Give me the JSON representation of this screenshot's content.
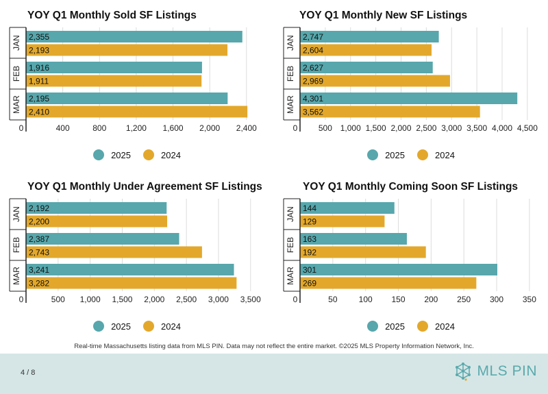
{
  "colors": {
    "s2025": "#57a7ac",
    "s2024": "#e3a82b"
  },
  "charts": [
    {
      "title": "YOY Q1 Monthly Sold SF Listings",
      "chart_data": {
        "type": "bar",
        "orientation": "horizontal",
        "categories": [
          "JAN",
          "FEB",
          "MAR"
        ],
        "series": [
          {
            "name": "2025",
            "values": [
              2355,
              1916,
              2195
            ],
            "labels": [
              "2,355",
              "1,916",
              "2,195"
            ]
          },
          {
            "name": "2024",
            "values": [
              2193,
              1911,
              2410
            ],
            "labels": [
              "2,193",
              "1,911",
              "2,410"
            ]
          }
        ],
        "xlim": [
          0,
          2640
        ],
        "ticks": [
          0,
          400,
          800,
          1200,
          1600,
          2000,
          2400
        ],
        "tick_labels": [
          "0",
          "400",
          "800",
          "1,200",
          "1,600",
          "2,000",
          "2,400"
        ]
      }
    },
    {
      "title": "YOY Q1 Monthly New SF Listings",
      "chart_data": {
        "type": "bar",
        "orientation": "horizontal",
        "categories": [
          "JAN",
          "FEB",
          "MAR"
        ],
        "series": [
          {
            "name": "2025",
            "values": [
              2747,
              2627,
              4301
            ],
            "labels": [
              "2,747",
              "2,627",
              "4,301"
            ]
          },
          {
            "name": "2024",
            "values": [
              2604,
              2969,
              3562
            ],
            "labels": [
              "2,604",
              "2,969",
              "3,562"
            ]
          }
        ],
        "xlim": [
          0,
          4800
        ],
        "ticks": [
          0,
          500,
          1000,
          1500,
          2000,
          2500,
          3000,
          3500,
          4000,
          4500
        ],
        "tick_labels": [
          "0",
          "500",
          "1,000",
          "1,500",
          "2,000",
          "2,500",
          "3,000",
          "3,500",
          "4,000",
          "4,500"
        ]
      }
    },
    {
      "title": "YOY Q1 Monthly Under Agreement SF Listings",
      "chart_data": {
        "type": "bar",
        "orientation": "horizontal",
        "categories": [
          "JAN",
          "FEB",
          "MAR"
        ],
        "series": [
          {
            "name": "2025",
            "values": [
              2192,
              2387,
              3241
            ],
            "labels": [
              "2,192",
              "2,387",
              "3,241"
            ]
          },
          {
            "name": "2024",
            "values": [
              2200,
              2743,
              3282
            ],
            "labels": [
              "2,200",
              "2,743",
              "3,282"
            ]
          }
        ],
        "xlim": [
          0,
          3780
        ],
        "ticks": [
          0,
          500,
          1000,
          1500,
          2000,
          2500,
          3000,
          3500
        ],
        "tick_labels": [
          "0",
          "500",
          "1,000",
          "1,500",
          "2,000",
          "2,500",
          "3,000",
          "3,500"
        ]
      }
    },
    {
      "title": "YOY Q1 Monthly Coming Soon SF Listings",
      "chart_data": {
        "type": "bar",
        "orientation": "horizontal",
        "categories": [
          "JAN",
          "FEB",
          "MAR"
        ],
        "series": [
          {
            "name": "2025",
            "values": [
              144,
              163,
              301
            ],
            "labels": [
              "144",
              "163",
              "301"
            ]
          },
          {
            "name": "2024",
            "values": [
              129,
              192,
              269
            ],
            "labels": [
              "129",
              "192",
              "269"
            ]
          }
        ],
        "xlim": [
          0,
          370
        ],
        "ticks": [
          0,
          50,
          100,
          150,
          200,
          250,
          300,
          350
        ],
        "tick_labels": [
          "0",
          "50",
          "100",
          "150",
          "200",
          "250",
          "300",
          "350"
        ]
      }
    }
  ],
  "legend": {
    "label_2025": "2025",
    "label_2024": "2024"
  },
  "footnote": "Real-time Massachusetts listing data from MLS PIN. Data may not reflect the entire market. ©2025 MLS Property Information Network, Inc.",
  "footer": {
    "page": "4 / 8",
    "logo_text": "MLS PIN"
  }
}
